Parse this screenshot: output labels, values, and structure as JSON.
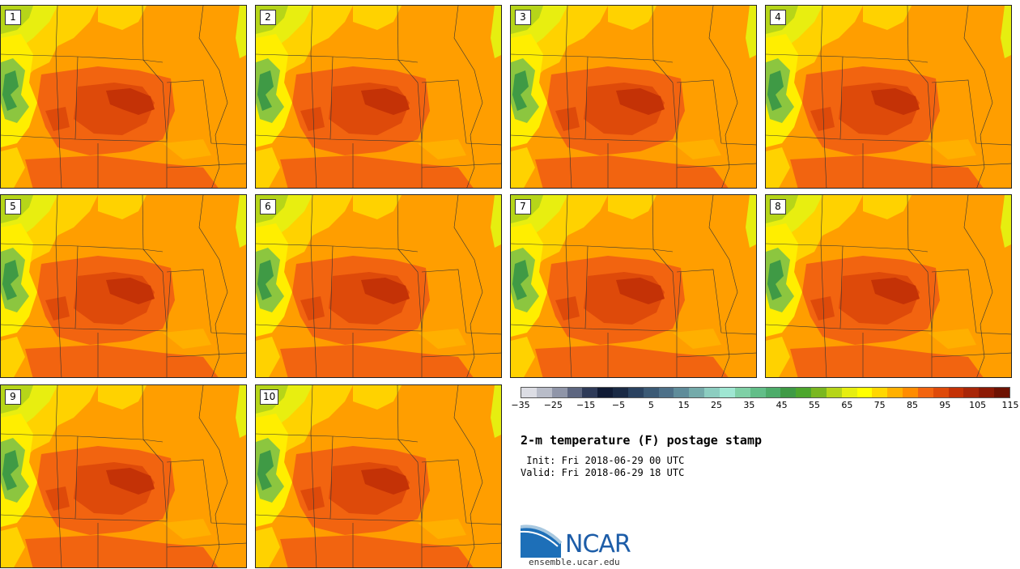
{
  "panels": [
    "1",
    "2",
    "3",
    "4",
    "5",
    "6",
    "7",
    "8",
    "9",
    "10"
  ],
  "colorbar": {
    "colors": [
      "#dcdde4",
      "#b8bcc8",
      "#8f95a8",
      "#5d6680",
      "#2e3a58",
      "#101b35",
      "#1a2a45",
      "#2a4260",
      "#3b5a75",
      "#4d7088",
      "#5f8c9a",
      "#74aaaa",
      "#8ccdc0",
      "#9fe6d2",
      "#7fd0a6",
      "#62be88",
      "#4dac6a",
      "#3f9a45",
      "#4da62d",
      "#7ab720",
      "#b6d519",
      "#e6ee10",
      "#ffff00",
      "#ffd700",
      "#ffb000",
      "#ff8c00",
      "#f26410",
      "#de4a0a",
      "#c43206",
      "#a82608",
      "#8c1a05",
      "#6d1202"
    ],
    "tick_labels": [
      "−35",
      "−25",
      "−15",
      "−5",
      "5",
      "15",
      "25",
      "35",
      "45",
      "55",
      "65",
      "75",
      "85",
      "95",
      "105",
      "115"
    ]
  },
  "title": "2-m temperature (F) postage stamp",
  "init_text": " Init: Fri 2018-06-29 00 UTC",
  "valid_text": "Valid: Fri 2018-06-29 18 UTC",
  "logo_text": "NCAR",
  "site_text": "ensemble.ucar.edu"
}
